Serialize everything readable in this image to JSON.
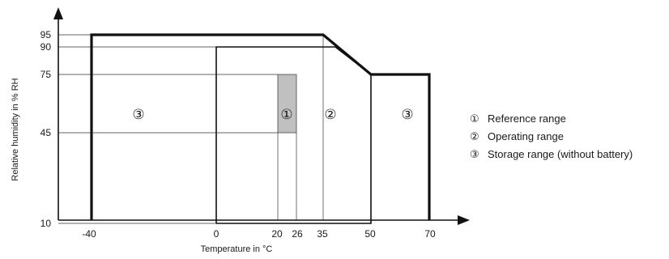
{
  "axes": {
    "x_label": "Temperature in °C",
    "y_label": "Relative humidity in % RH",
    "x_ticks": [
      "-40",
      "0",
      "20",
      "26",
      "35",
      "50",
      "70"
    ],
    "y_ticks": [
      "95",
      "90",
      "75",
      "45",
      "10"
    ]
  },
  "regions": {
    "reference": {
      "marker": "①",
      "temp_range": [
        20,
        26
      ],
      "humidity_range": [
        45,
        75
      ],
      "fill": "#c0c0c0"
    },
    "operating": {
      "marker": "②",
      "outline": [
        [
          0,
          10
        ],
        [
          0,
          90
        ],
        [
          38,
          90
        ],
        [
          50,
          75
        ],
        [
          50,
          10
        ]
      ]
    },
    "storage": {
      "marker": "③",
      "outline": [
        [
          -40,
          0
        ],
        [
          -40,
          95
        ],
        [
          35,
          95
        ],
        [
          50,
          75
        ],
        [
          70,
          75
        ],
        [
          70,
          0
        ]
      ]
    }
  },
  "region_markers": [
    "③",
    "①",
    "②",
    "③"
  ],
  "legend": [
    {
      "marker": "①",
      "text": "Reference range"
    },
    {
      "marker": "②",
      "text": "Operating range"
    },
    {
      "marker": "③",
      "text": "Storage range (without battery)"
    }
  ]
}
